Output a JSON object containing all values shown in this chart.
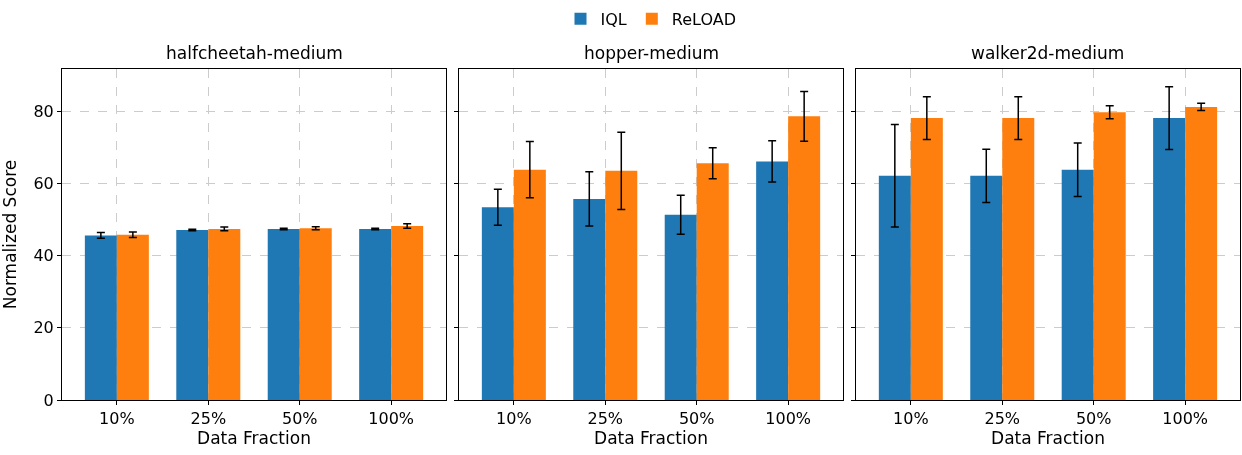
{
  "chart_data": [
    {
      "type": "bar",
      "title": "halfcheetah-medium",
      "xlabel": "Data Fraction",
      "ylabel": "Normalized Score",
      "categories": [
        "10%",
        "25%",
        "50%",
        "100%"
      ],
      "ylim": [
        0,
        91.7
      ],
      "yticks": [
        0,
        20,
        40,
        60,
        80
      ],
      "grid": true,
      "legend": "top",
      "series": [
        {
          "name": "IQL",
          "color": "#1f77b4",
          "values": [
            45.6,
            47.1,
            47.4,
            47.4
          ],
          "errors": [
            0.8,
            0.2,
            0.2,
            0.2
          ]
        },
        {
          "name": "ReLOAD",
          "color": "#ff7f0e",
          "values": [
            45.8,
            47.4,
            47.6,
            48.2
          ],
          "errors": [
            0.75,
            0.5,
            0.4,
            0.6
          ]
        }
      ]
    },
    {
      "type": "bar",
      "title": "hopper-medium",
      "xlabel": "Data Fraction",
      "categories": [
        "10%",
        "25%",
        "50%",
        "100%"
      ],
      "ylim": [
        0,
        91.7
      ],
      "yticks": [
        0,
        20,
        40,
        60,
        80
      ],
      "grid": true,
      "tick_labels": "x",
      "series": [
        {
          "name": "IQL",
          "color": "#1f77b4",
          "values": [
            53.4,
            55.7,
            51.3,
            66.1
          ],
          "errors": [
            5.0,
            7.5,
            5.4,
            5.7
          ]
        },
        {
          "name": "ReLOAD",
          "color": "#ff7f0e",
          "values": [
            63.8,
            63.5,
            65.6,
            78.6
          ],
          "errors": [
            7.8,
            10.7,
            4.3,
            6.9
          ]
        }
      ]
    },
    {
      "type": "bar",
      "title": "walker2d-medium",
      "xlabel": "Data Fraction",
      "categories": [
        "10%",
        "25%",
        "50%",
        "100%"
      ],
      "ylim": [
        0,
        91.7
      ],
      "yticks": [
        0,
        20,
        40,
        60,
        80
      ],
      "grid": true,
      "tick_labels": "x",
      "series": [
        {
          "name": "IQL",
          "color": "#1f77b4",
          "values": [
            62.1,
            62.1,
            63.8,
            78.1
          ],
          "errors": [
            14.2,
            7.4,
            7.4,
            8.7
          ]
        },
        {
          "name": "ReLOAD",
          "color": "#ff7f0e",
          "values": [
            78.1,
            78.1,
            79.7,
            81.2
          ],
          "errors": [
            5.9,
            5.9,
            1.8,
            1.0
          ]
        }
      ]
    }
  ]
}
